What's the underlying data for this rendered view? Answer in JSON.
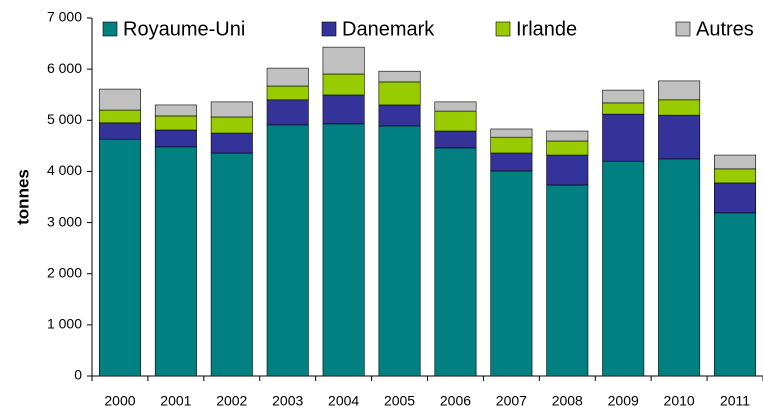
{
  "chart_data": {
    "type": "stacked_bar",
    "y_label": "tonnes",
    "categories": [
      "2000",
      "2001",
      "2002",
      "2003",
      "2004",
      "2005",
      "2006",
      "2007",
      "2008",
      "2009",
      "2010",
      "2011"
    ],
    "series": [
      {
        "name": "Royaume-Uni",
        "color": "#008080",
        "values": [
          4630,
          4480,
          4360,
          4910,
          4930,
          4890,
          4460,
          4010,
          3735,
          4200,
          4245,
          3190
        ]
      },
      {
        "name": "Danemark",
        "color": "#333399",
        "values": [
          320,
          330,
          390,
          490,
          565,
          410,
          330,
          350,
          585,
          920,
          855,
          585
        ]
      },
      {
        "name": "Irlande",
        "color": "#99cc00",
        "values": [
          250,
          275,
          315,
          270,
          410,
          450,
          390,
          310,
          275,
          220,
          300,
          275
        ]
      },
      {
        "name": "Autres",
        "color": "#c0c0c0",
        "values": [
          410,
          215,
          295,
          350,
          525,
          210,
          180,
          160,
          195,
          250,
          370,
          270
        ]
      }
    ],
    "ylim": [
      0,
      7000
    ],
    "yticks": [
      0,
      {
        "value": 1000,
        "label": "1 000"
      },
      {
        "value": 2000,
        "label": "2 000"
      },
      {
        "value": 3000,
        "label": "3 000"
      },
      {
        "value": 4000,
        "label": "4 000"
      },
      {
        "value": 5000,
        "label": "5 000"
      },
      {
        "value": 6000,
        "label": "6 000"
      },
      {
        "value": 7000,
        "label": "7 000"
      }
    ],
    "legend": "top"
  }
}
